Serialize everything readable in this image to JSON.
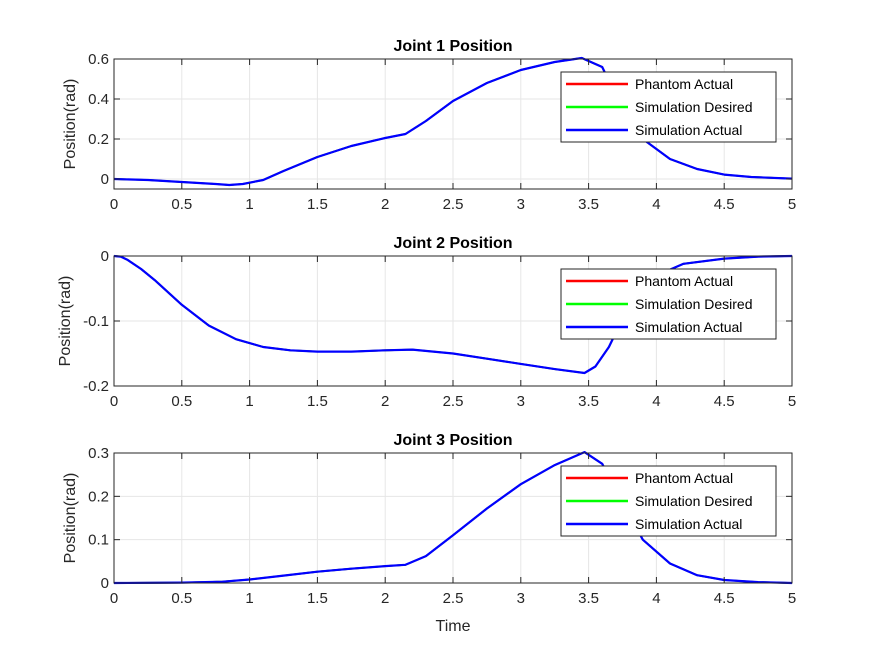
{
  "chart_data": [
    {
      "type": "line",
      "title": "Joint 1 Position",
      "xlabel": "",
      "ylabel": "Position(rad)",
      "xlim": [
        0,
        5
      ],
      "ylim": [
        -0.05,
        0.6
      ],
      "xticks": [
        0,
        0.5,
        1,
        1.5,
        2,
        2.5,
        3,
        3.5,
        4,
        4.5,
        5
      ],
      "xtick_labels": [
        "0",
        "0.5",
        "1",
        "1.5",
        "2",
        "2.5",
        "3",
        "3.5",
        "4",
        "4.5",
        "5"
      ],
      "yticks": [
        0,
        0.2,
        0.4,
        0.6
      ],
      "ytick_labels": [
        "0",
        "0.2",
        "0.4",
        "0.6"
      ],
      "grid": true,
      "legend_position": "top-right",
      "series": [
        {
          "name": "Phantom Actual",
          "color": "#ff0000",
          "x": [
            0,
            0.25,
            0.5,
            0.75,
            0.85,
            0.95,
            1.1,
            1.25,
            1.5,
            1.75,
            2.0,
            2.15,
            2.3,
            2.5,
            2.75,
            3.0,
            3.25,
            3.45,
            3.6,
            3.75,
            3.9,
            4.1,
            4.3,
            4.5,
            4.7,
            5.0
          ],
          "y": [
            0.0,
            -0.005,
            -0.015,
            -0.025,
            -0.03,
            -0.025,
            -0.005,
            0.04,
            0.11,
            0.165,
            0.205,
            0.225,
            0.29,
            0.39,
            0.48,
            0.545,
            0.585,
            0.605,
            0.56,
            0.35,
            0.2,
            0.1,
            0.05,
            0.022,
            0.01,
            0.002
          ]
        },
        {
          "name": "Simulation Desired",
          "color": "#00ff00",
          "x": [
            0,
            0.25,
            0.5,
            0.75,
            0.85,
            0.95,
            1.1,
            1.25,
            1.5,
            1.75,
            2.0,
            2.15,
            2.3,
            2.5,
            2.75,
            3.0,
            3.25,
            3.45,
            3.6,
            3.75,
            3.9,
            4.1,
            4.3,
            4.5,
            4.7,
            5.0
          ],
          "y": [
            0.0,
            -0.005,
            -0.015,
            -0.025,
            -0.03,
            -0.025,
            -0.005,
            0.04,
            0.11,
            0.165,
            0.205,
            0.225,
            0.29,
            0.39,
            0.48,
            0.545,
            0.585,
            0.605,
            0.56,
            0.35,
            0.2,
            0.1,
            0.05,
            0.022,
            0.01,
            0.002
          ]
        },
        {
          "name": "Simulation Actual",
          "color": "#0000ff",
          "x": [
            0,
            0.25,
            0.5,
            0.75,
            0.85,
            0.95,
            1.1,
            1.25,
            1.5,
            1.75,
            2.0,
            2.15,
            2.3,
            2.5,
            2.75,
            3.0,
            3.25,
            3.45,
            3.6,
            3.75,
            3.9,
            4.1,
            4.3,
            4.5,
            4.7,
            5.0
          ],
          "y": [
            0.0,
            -0.005,
            -0.015,
            -0.025,
            -0.03,
            -0.025,
            -0.005,
            0.04,
            0.11,
            0.165,
            0.205,
            0.225,
            0.29,
            0.39,
            0.48,
            0.545,
            0.585,
            0.605,
            0.56,
            0.35,
            0.2,
            0.1,
            0.05,
            0.022,
            0.01,
            0.002
          ]
        }
      ]
    },
    {
      "type": "line",
      "title": "Joint 2 Position",
      "xlabel": "",
      "ylabel": "Position(rad)",
      "xlim": [
        0,
        5
      ],
      "ylim": [
        -0.2,
        0
      ],
      "xticks": [
        0,
        0.5,
        1,
        1.5,
        2,
        2.5,
        3,
        3.5,
        4,
        4.5,
        5
      ],
      "xtick_labels": [
        "0",
        "0.5",
        "1",
        "1.5",
        "2",
        "2.5",
        "3",
        "3.5",
        "4",
        "4.5",
        "5"
      ],
      "yticks": [
        -0.2,
        -0.1,
        0
      ],
      "ytick_labels": [
        "-0.2",
        "-0.1",
        "0"
      ],
      "grid": true,
      "legend_position": "top-right",
      "series": [
        {
          "name": "Phantom Actual",
          "color": "#ff0000",
          "x": [
            0,
            0.05,
            0.1,
            0.2,
            0.3,
            0.5,
            0.7,
            0.9,
            1.1,
            1.3,
            1.5,
            1.75,
            2.0,
            2.2,
            2.5,
            2.75,
            3.0,
            3.25,
            3.47,
            3.55,
            3.65,
            3.8,
            4.0,
            4.2,
            4.5,
            4.75,
            5.0
          ],
          "y": [
            0.0,
            -0.001,
            -0.006,
            -0.02,
            -0.037,
            -0.075,
            -0.107,
            -0.128,
            -0.14,
            -0.145,
            -0.147,
            -0.147,
            -0.145,
            -0.144,
            -0.15,
            -0.158,
            -0.166,
            -0.174,
            -0.18,
            -0.17,
            -0.14,
            -0.075,
            -0.03,
            -0.012,
            -0.004,
            -0.001,
            0.0
          ]
        },
        {
          "name": "Simulation Desired",
          "color": "#00ff00",
          "x": [
            0,
            0.05,
            0.1,
            0.2,
            0.3,
            0.5,
            0.7,
            0.9,
            1.1,
            1.3,
            1.5,
            1.75,
            2.0,
            2.2,
            2.5,
            2.75,
            3.0,
            3.25,
            3.47,
            3.55,
            3.65,
            3.8,
            4.0,
            4.2,
            4.5,
            4.75,
            5.0
          ],
          "y": [
            0.0,
            -0.001,
            -0.006,
            -0.02,
            -0.037,
            -0.075,
            -0.107,
            -0.128,
            -0.14,
            -0.145,
            -0.147,
            -0.147,
            -0.145,
            -0.144,
            -0.15,
            -0.158,
            -0.166,
            -0.174,
            -0.18,
            -0.17,
            -0.14,
            -0.075,
            -0.03,
            -0.012,
            -0.004,
            -0.001,
            0.0
          ]
        },
        {
          "name": "Simulation Actual",
          "color": "#0000ff",
          "x": [
            0,
            0.05,
            0.1,
            0.2,
            0.3,
            0.5,
            0.7,
            0.9,
            1.1,
            1.3,
            1.5,
            1.75,
            2.0,
            2.2,
            2.5,
            2.75,
            3.0,
            3.25,
            3.47,
            3.55,
            3.65,
            3.8,
            4.0,
            4.2,
            4.5,
            4.75,
            5.0
          ],
          "y": [
            0.0,
            -0.001,
            -0.006,
            -0.02,
            -0.037,
            -0.075,
            -0.107,
            -0.128,
            -0.14,
            -0.145,
            -0.147,
            -0.147,
            -0.145,
            -0.144,
            -0.15,
            -0.158,
            -0.166,
            -0.174,
            -0.18,
            -0.17,
            -0.14,
            -0.075,
            -0.03,
            -0.012,
            -0.004,
            -0.001,
            0.0
          ]
        }
      ]
    },
    {
      "type": "line",
      "title": "Joint 3 Position",
      "xlabel": "Time",
      "ylabel": "Position(rad)",
      "xlim": [
        0,
        5
      ],
      "ylim": [
        0,
        0.3
      ],
      "xticks": [
        0,
        0.5,
        1,
        1.5,
        2,
        2.5,
        3,
        3.5,
        4,
        4.5,
        5
      ],
      "xtick_labels": [
        "0",
        "0.5",
        "1",
        "1.5",
        "2",
        "2.5",
        "3",
        "3.5",
        "4",
        "4.5",
        "5"
      ],
      "yticks": [
        0,
        0.1,
        0.2,
        0.3
      ],
      "ytick_labels": [
        "0",
        "0.1",
        "0.2",
        "0.3"
      ],
      "grid": true,
      "legend_position": "top-right",
      "series": [
        {
          "name": "Phantom Actual",
          "color": "#ff0000",
          "x": [
            0,
            0.5,
            0.8,
            1.0,
            1.25,
            1.5,
            1.75,
            2.0,
            2.15,
            2.3,
            2.5,
            2.75,
            3.0,
            3.25,
            3.47,
            3.6,
            3.75,
            3.9,
            4.1,
            4.3,
            4.5,
            4.75,
            5.0
          ],
          "y": [
            0.0,
            0.001,
            0.003,
            0.008,
            0.017,
            0.026,
            0.033,
            0.039,
            0.042,
            0.062,
            0.11,
            0.172,
            0.228,
            0.272,
            0.302,
            0.275,
            0.185,
            0.1,
            0.045,
            0.018,
            0.007,
            0.002,
            0.0
          ]
        },
        {
          "name": "Simulation Desired",
          "color": "#00ff00",
          "x": [
            0,
            0.5,
            0.8,
            1.0,
            1.25,
            1.5,
            1.75,
            2.0,
            2.15,
            2.3,
            2.5,
            2.75,
            3.0,
            3.25,
            3.47,
            3.6,
            3.75,
            3.9,
            4.1,
            4.3,
            4.5,
            4.75,
            5.0
          ],
          "y": [
            0.0,
            0.001,
            0.003,
            0.008,
            0.017,
            0.026,
            0.033,
            0.039,
            0.042,
            0.062,
            0.11,
            0.172,
            0.228,
            0.272,
            0.302,
            0.275,
            0.185,
            0.1,
            0.045,
            0.018,
            0.007,
            0.002,
            0.0
          ]
        },
        {
          "name": "Simulation Actual",
          "color": "#0000ff",
          "x": [
            0,
            0.5,
            0.8,
            1.0,
            1.25,
            1.5,
            1.75,
            2.0,
            2.15,
            2.3,
            2.5,
            2.75,
            3.0,
            3.25,
            3.47,
            3.6,
            3.75,
            3.9,
            4.1,
            4.3,
            4.5,
            4.75,
            5.0
          ],
          "y": [
            0.0,
            0.001,
            0.003,
            0.008,
            0.017,
            0.026,
            0.033,
            0.039,
            0.042,
            0.062,
            0.11,
            0.172,
            0.228,
            0.272,
            0.302,
            0.275,
            0.185,
            0.1,
            0.045,
            0.018,
            0.007,
            0.002,
            0.0
          ]
        }
      ]
    }
  ]
}
